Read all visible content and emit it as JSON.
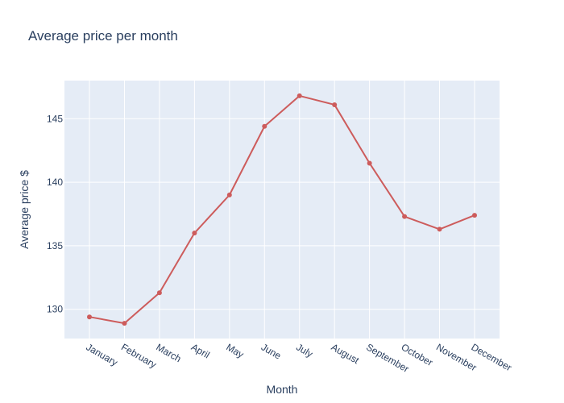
{
  "chart_data": {
    "type": "line",
    "title": "Average price per month",
    "xlabel": "Month",
    "ylabel": "Average price $",
    "categories": [
      "January",
      "February",
      "March",
      "April",
      "May",
      "June",
      "July",
      "August",
      "September",
      "October",
      "November",
      "December"
    ],
    "series": [
      {
        "values": [
          129.4,
          128.9,
          131.3,
          136.0,
          139.0,
          144.4,
          146.8,
          146.1,
          141.5,
          137.3,
          136.3,
          137.4
        ],
        "color": "#cd5c5c"
      }
    ],
    "ylim": [
      127.7,
      148.0
    ],
    "yticks": [
      130,
      135,
      140,
      145
    ],
    "grid": true,
    "legend": "none",
    "plot_background": "#e5ecf6",
    "gridline_color": "#ffffff",
    "text_color": "#2a3f5f"
  }
}
